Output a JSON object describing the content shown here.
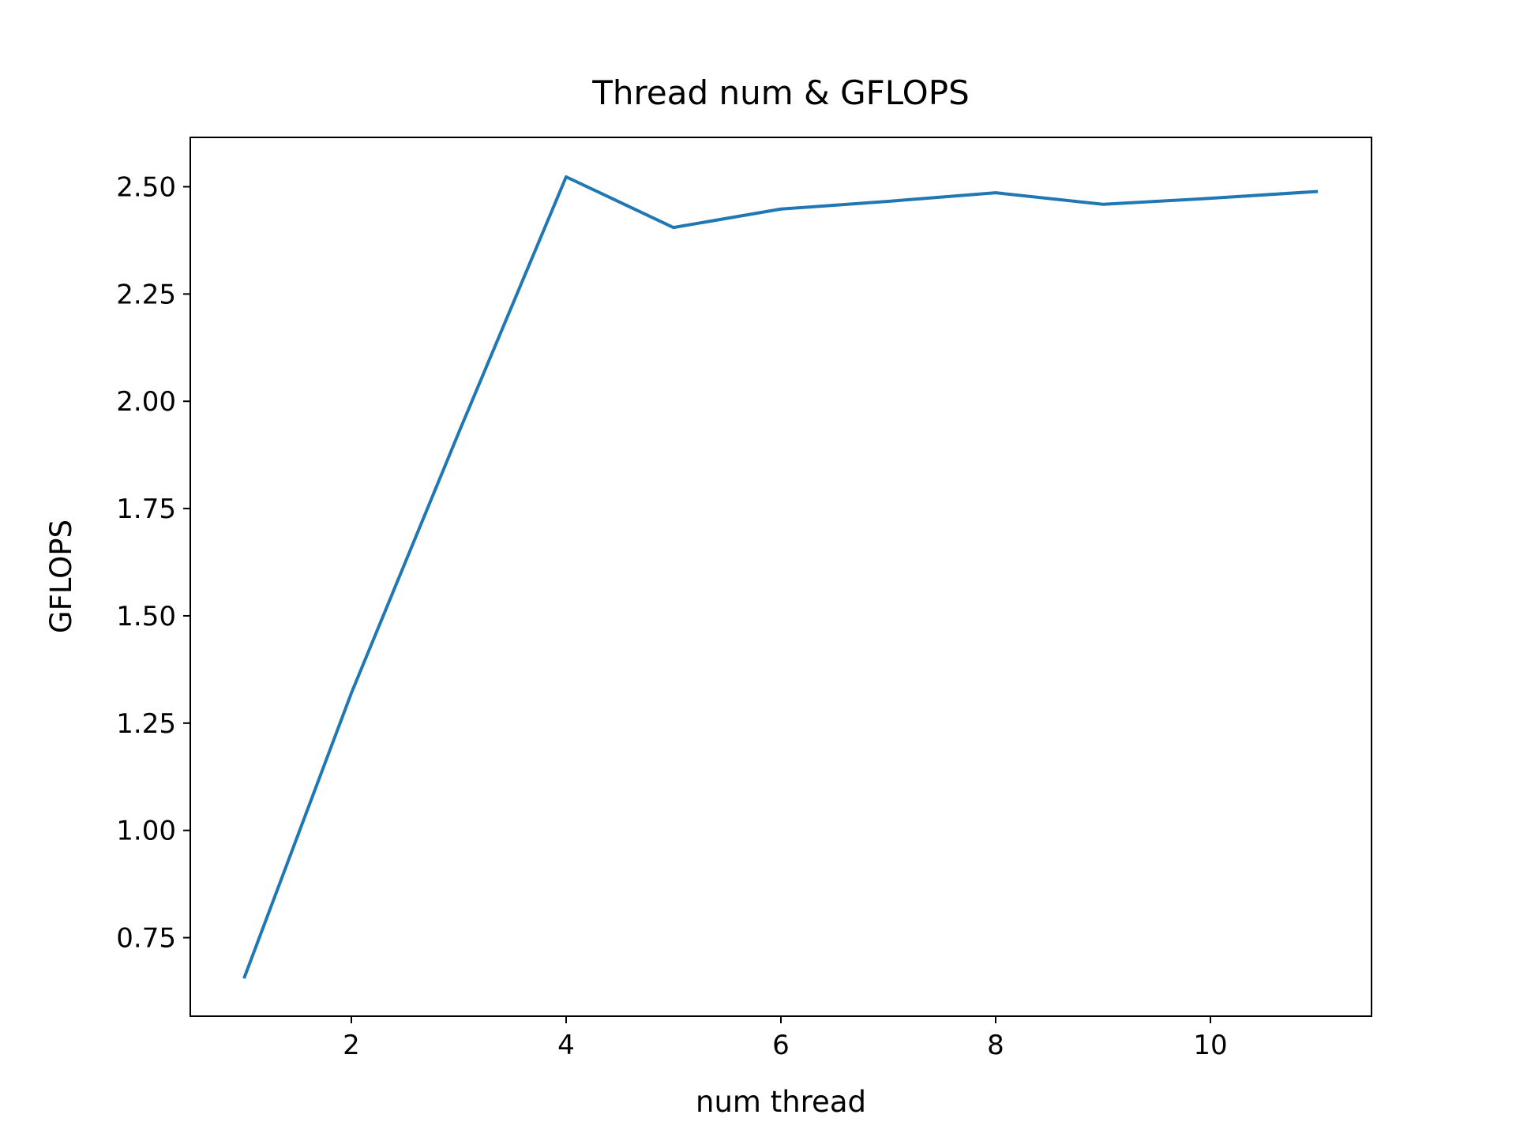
{
  "chart_data": {
    "type": "line",
    "title": "Thread num & GFLOPS",
    "x_label": "num thread",
    "y_label": "GFLOPS",
    "x": [
      1,
      2,
      3,
      4,
      5,
      6,
      7,
      8,
      9,
      10,
      11
    ],
    "series": [
      {
        "name": "GFLOPS",
        "color": "#1f77b4",
        "values": [
          0.655,
          1.32,
          1.927,
          2.523,
          2.405,
          2.448,
          2.466,
          2.486,
          2.459,
          2.473,
          2.489
        ]
      }
    ],
    "xlim": [
      0.5,
      11.5
    ],
    "xticks": [
      2,
      4,
      6,
      8,
      10
    ],
    "ylim": [
      0.567,
      2.615
    ],
    "yticks": [
      0.75,
      {
        "value": 1,
        "label": "1.00"
      },
      1.25,
      {
        "value": 1.5,
        "label": "1.50"
      },
      1.75,
      {
        "value": 2,
        "label": "2.00"
      },
      2.25,
      {
        "value": 2.5,
        "label": "2.50"
      }
    ],
    "grid": false
  }
}
